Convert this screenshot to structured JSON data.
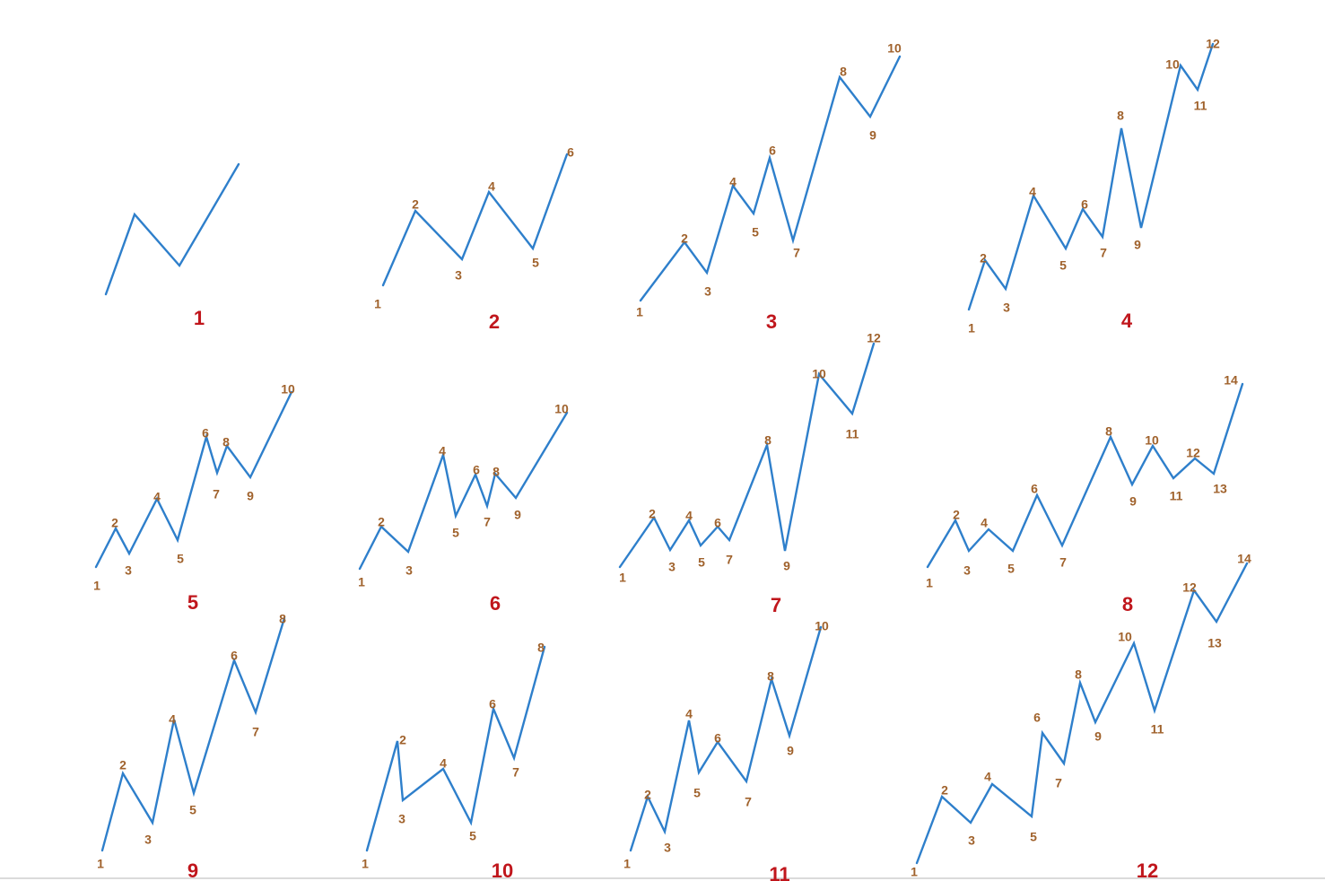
{
  "colors": {
    "line": "#2e7fcb",
    "point_label": "#a0622c",
    "pattern_number": "#c0161c",
    "background": "#ffffff"
  },
  "patterns": [
    {
      "number": "1",
      "points": [
        {
          "label": ""
        },
        {
          "label": ""
        },
        {
          "label": ""
        },
        {
          "label": ""
        }
      ]
    },
    {
      "number": "2",
      "points": [
        {
          "label": "1"
        },
        {
          "label": "2"
        },
        {
          "label": "3"
        },
        {
          "label": "4"
        },
        {
          "label": "5"
        },
        {
          "label": "6"
        }
      ]
    },
    {
      "number": "3",
      "points": [
        {
          "label": "1"
        },
        {
          "label": "2"
        },
        {
          "label": "3"
        },
        {
          "label": "4"
        },
        {
          "label": "5"
        },
        {
          "label": "6"
        },
        {
          "label": "7"
        },
        {
          "label": "8"
        },
        {
          "label": "9"
        },
        {
          "label": "10"
        }
      ]
    },
    {
      "number": "4",
      "points": [
        {
          "label": "1"
        },
        {
          "label": "2"
        },
        {
          "label": "3"
        },
        {
          "label": "4"
        },
        {
          "label": "5"
        },
        {
          "label": "6"
        },
        {
          "label": "7"
        },
        {
          "label": "8"
        },
        {
          "label": "9"
        },
        {
          "label": "10"
        },
        {
          "label": "11"
        },
        {
          "label": "12"
        }
      ]
    },
    {
      "number": "5",
      "points": [
        {
          "label": "1"
        },
        {
          "label": "2"
        },
        {
          "label": "3"
        },
        {
          "label": "4"
        },
        {
          "label": "5"
        },
        {
          "label": "6"
        },
        {
          "label": "7"
        },
        {
          "label": "8"
        },
        {
          "label": "9"
        },
        {
          "label": "10"
        }
      ]
    },
    {
      "number": "6",
      "points": [
        {
          "label": "1"
        },
        {
          "label": "2"
        },
        {
          "label": "3"
        },
        {
          "label": "4"
        },
        {
          "label": "5"
        },
        {
          "label": "6"
        },
        {
          "label": "7"
        },
        {
          "label": "8"
        },
        {
          "label": "9"
        },
        {
          "label": "10"
        }
      ]
    },
    {
      "number": "7",
      "points": [
        {
          "label": "1"
        },
        {
          "label": "2"
        },
        {
          "label": "3"
        },
        {
          "label": "4"
        },
        {
          "label": "5"
        },
        {
          "label": "6"
        },
        {
          "label": "7"
        },
        {
          "label": "8"
        },
        {
          "label": "9"
        },
        {
          "label": "10"
        },
        {
          "label": "11"
        },
        {
          "label": "12"
        }
      ]
    },
    {
      "number": "8",
      "points": [
        {
          "label": "1"
        },
        {
          "label": "2"
        },
        {
          "label": "3"
        },
        {
          "label": "4"
        },
        {
          "label": "5"
        },
        {
          "label": "6"
        },
        {
          "label": "7"
        },
        {
          "label": "8"
        },
        {
          "label": "9"
        },
        {
          "label": "10"
        },
        {
          "label": "11"
        },
        {
          "label": "12"
        },
        {
          "label": "13"
        },
        {
          "label": "14"
        }
      ]
    },
    {
      "number": "9",
      "points": [
        {
          "label": "1"
        },
        {
          "label": "2"
        },
        {
          "label": "3"
        },
        {
          "label": "4"
        },
        {
          "label": "5"
        },
        {
          "label": "6"
        },
        {
          "label": "7"
        },
        {
          "label": "8"
        }
      ]
    },
    {
      "number": "10",
      "points": [
        {
          "label": "1"
        },
        {
          "label": "2"
        },
        {
          "label": "3"
        },
        {
          "label": "4"
        },
        {
          "label": "5"
        },
        {
          "label": "6"
        },
        {
          "label": "7"
        },
        {
          "label": "8"
        }
      ]
    },
    {
      "number": "11",
      "points": [
        {
          "label": "1"
        },
        {
          "label": "2"
        },
        {
          "label": "3"
        },
        {
          "label": "4"
        },
        {
          "label": "5"
        },
        {
          "label": "6"
        },
        {
          "label": "7"
        },
        {
          "label": "8"
        },
        {
          "label": "9"
        },
        {
          "label": "10"
        }
      ]
    },
    {
      "number": "12",
      "points": [
        {
          "label": "1"
        },
        {
          "label": "2"
        },
        {
          "label": "3"
        },
        {
          "label": "4"
        },
        {
          "label": "5"
        },
        {
          "label": "6"
        },
        {
          "label": "7"
        },
        {
          "label": "8"
        },
        {
          "label": "9"
        },
        {
          "label": "10"
        },
        {
          "label": "11"
        },
        {
          "label": "12"
        },
        {
          "label": "13"
        },
        {
          "label": "14"
        }
      ]
    }
  ]
}
